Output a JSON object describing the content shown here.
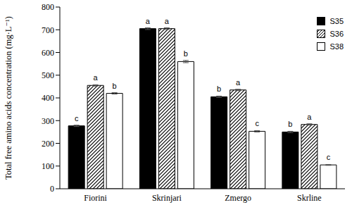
{
  "chart_data": {
    "type": "bar",
    "y_label": "Total free amino acids concentration (mg·L⁻¹)",
    "categories": [
      "Fiorini",
      "Skrinjari",
      "Zmergo",
      "Skrline"
    ],
    "series": [
      {
        "name": "S35",
        "color": "#000000",
        "values": [
          277,
          705,
          405,
          250
        ],
        "errors": [
          3,
          4,
          3,
          3
        ],
        "letters": [
          "c",
          "a",
          "b",
          "b"
        ]
      },
      {
        "name": "S36",
        "color": "#000000",
        "marker": "hatch",
        "values": [
          455,
          705,
          435,
          283
        ],
        "errors": [
          3,
          4,
          3,
          3
        ],
        "letters": [
          "a",
          "a",
          "a",
          "a"
        ]
      },
      {
        "name": "S38",
        "color": "#ffffff",
        "values": [
          420,
          560,
          253,
          105
        ],
        "errors": [
          3,
          5,
          3,
          2
        ],
        "letters": [
          "b",
          "b",
          "c",
          "c"
        ]
      }
    ],
    "ylim": [
      0,
      800
    ],
    "yticks": [
      0,
      100,
      200,
      300,
      400,
      500,
      600,
      700,
      800
    ],
    "legend": "upper right",
    "grid": false
  }
}
